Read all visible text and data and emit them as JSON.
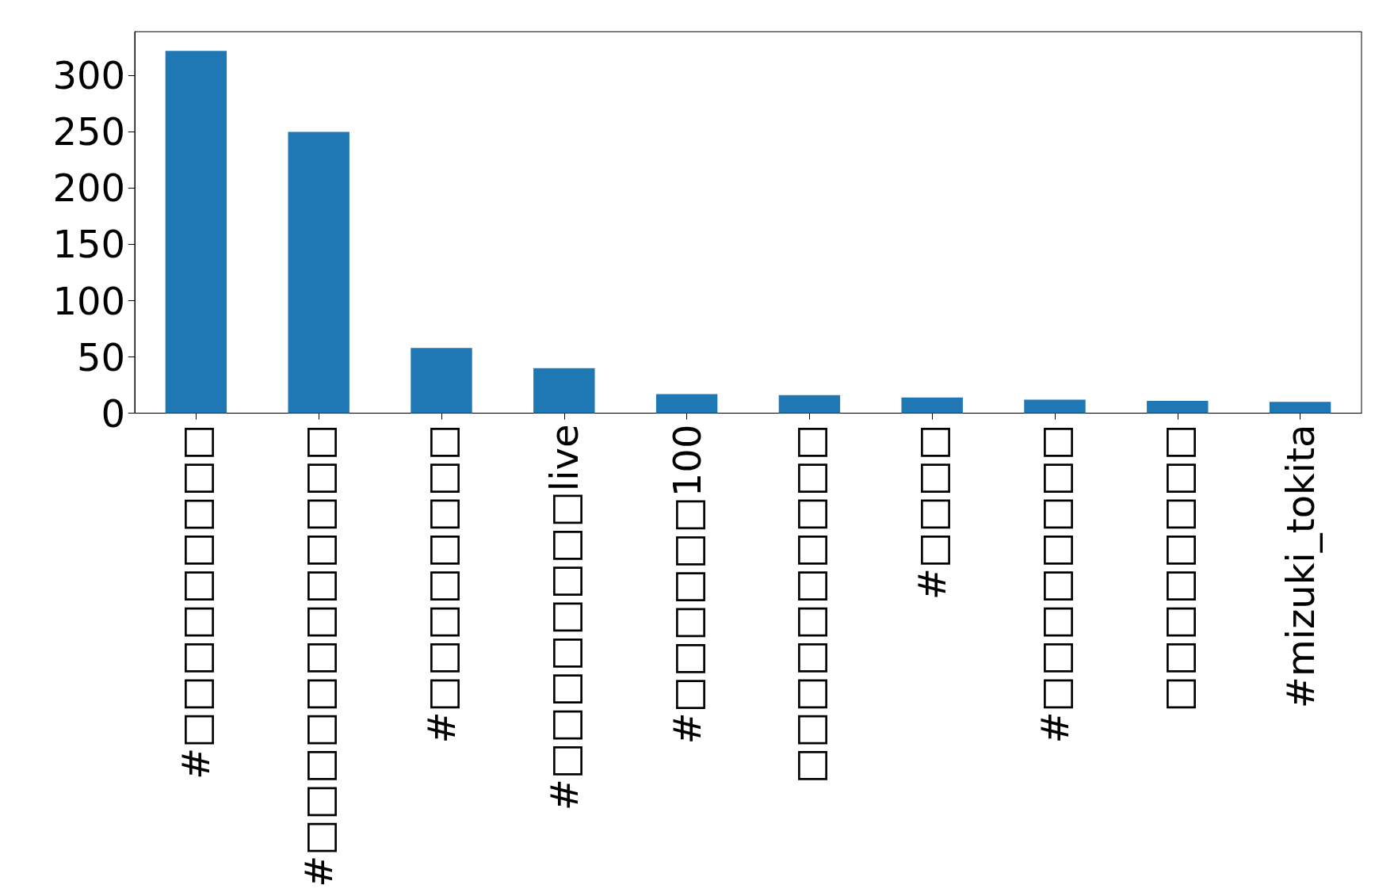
{
  "chart_data": {
    "type": "bar",
    "categories": [
      "#□□□□□□□□□",
      "#□□□□□□□□□□□□",
      "#□□□□□□□□",
      "#□□□□□□□□live",
      "#□□□□□□100",
      "□□□□□□□□□□",
      "#□□□□",
      "#□□□□□□□□",
      "□□□□□□□□",
      "#mizuki_tokita"
    ],
    "values": [
      322,
      250,
      58,
      40,
      17,
      16,
      14,
      12,
      11,
      10
    ],
    "color": "#1f77b4",
    "ylim": [
      0,
      339
    ],
    "yticks": [
      0,
      50,
      100,
      150,
      200,
      250,
      300
    ],
    "grid": false
  }
}
